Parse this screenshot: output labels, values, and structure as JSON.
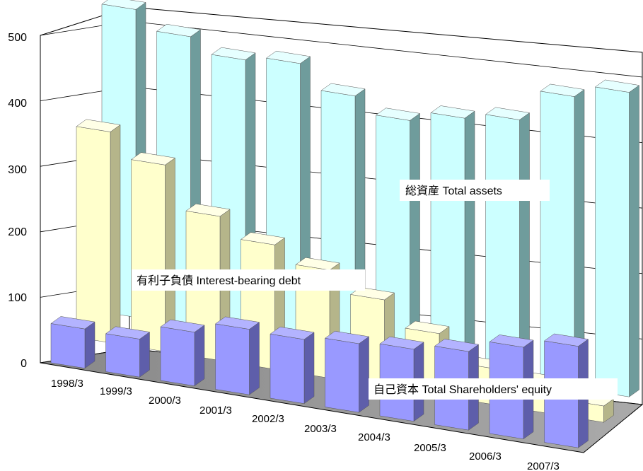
{
  "chart_data": {
    "type": "bar",
    "subtype": "3d-clustered-depth",
    "categories": [
      "1998/3",
      "1999/3",
      "2000/3",
      "2001/3",
      "2002/3",
      "2003/3",
      "2004/3",
      "2005/3",
      "2006/3",
      "2007/3"
    ],
    "series": [
      {
        "name": "総資産 Total assets",
        "values": [
          470,
          442,
          420,
          428,
          392,
          368,
          385,
          396,
          445,
          465
        ],
        "color": "#CCFFFF"
      },
      {
        "name": "有利子負債 Interest-bearing debt",
        "values": [
          322,
          285,
          220,
          190,
          165,
          133,
          95,
          55,
          45,
          25
        ],
        "color": "#FFFFCC"
      },
      {
        "name": "自己資本 Total Shareholders' equity",
        "values": [
          60,
          58,
          82,
          100,
          98,
          105,
          110,
          120,
          140,
          155
        ],
        "color": "#9999FF"
      }
    ],
    "y_ticks": [
      "0",
      "100",
      "200",
      "300",
      "400",
      "500"
    ],
    "ylim": [
      0,
      500
    ],
    "grid": true,
    "legend": "inline labels on series"
  }
}
